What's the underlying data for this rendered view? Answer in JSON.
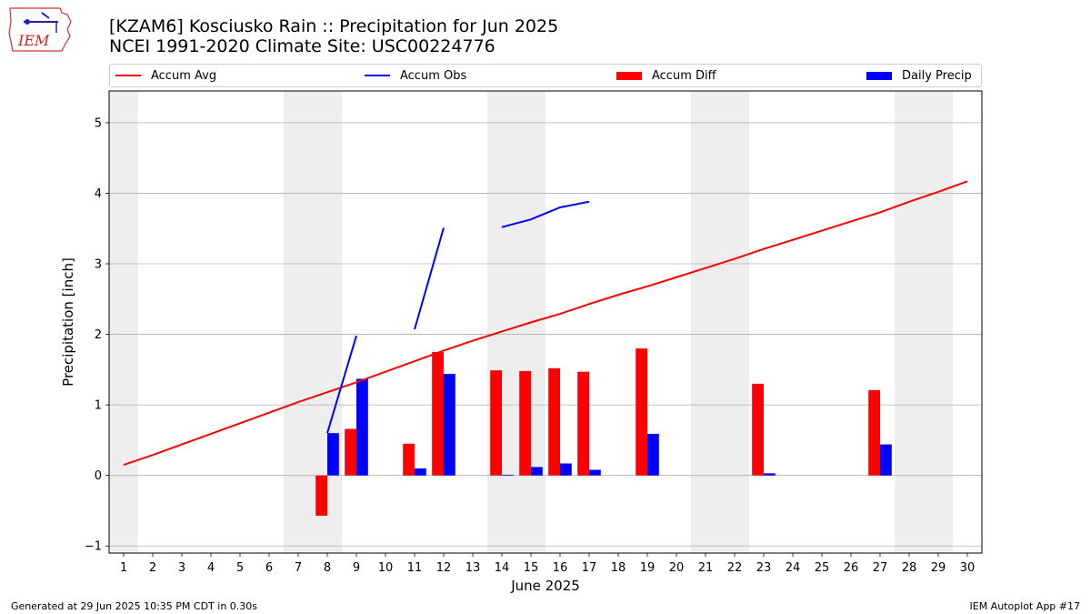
{
  "header": {
    "title_line1": "[KZAM6] Kosciusko Rain :: Precipitation for Jun 2025",
    "title_line2": "NCEI 1991-2020 Climate Site: USC00224776"
  },
  "logo": {
    "text": "IEM"
  },
  "footer": {
    "left": "Generated at 29 Jun 2025 10:35 PM CDT in 0.30s",
    "right": "IEM Autoplot App #17"
  },
  "colors": {
    "accum_avg": "#ff0000",
    "accum_obs": "#0000ff",
    "accum_diff": "#ff0000",
    "daily_precip": "#0000ff",
    "weekend_shade": "#eeeeee",
    "grid": "#b0b0b0"
  },
  "chart_data": {
    "type": "bar",
    "xlabel": "June 2025",
    "ylabel": "Precipitation [inch]",
    "ylim": [
      -1.1,
      5.45
    ],
    "xlim": [
      0.5,
      30.5
    ],
    "yticks": [
      -1,
      0,
      1,
      2,
      3,
      4,
      5
    ],
    "grid": true,
    "legend_placement": "top",
    "x": [
      1,
      2,
      3,
      4,
      5,
      6,
      7,
      8,
      9,
      10,
      11,
      12,
      13,
      14,
      15,
      16,
      17,
      18,
      19,
      20,
      21,
      22,
      23,
      24,
      25,
      26,
      27,
      28,
      29,
      30
    ],
    "weekend_days": [
      1,
      7,
      8,
      14,
      15,
      21,
      22,
      28,
      29
    ],
    "series": [
      {
        "name": "Accum Avg",
        "kind": "line",
        "values": [
          0.15,
          0.29,
          0.44,
          0.59,
          0.74,
          0.89,
          1.04,
          1.18,
          1.32,
          1.47,
          1.62,
          1.77,
          1.91,
          2.04,
          2.17,
          2.29,
          2.43,
          2.56,
          2.68,
          2.81,
          2.94,
          3.07,
          3.21,
          3.34,
          3.47,
          3.6,
          3.73,
          3.88,
          4.02,
          4.17
        ]
      },
      {
        "name": "Accum Obs",
        "kind": "line",
        "values": [
          null,
          null,
          null,
          null,
          null,
          null,
          null,
          0.6,
          1.98,
          null,
          2.07,
          3.51,
          null,
          3.52,
          3.63,
          3.8,
          3.88,
          null,
          null,
          null,
          null,
          null,
          null,
          null,
          null,
          null,
          null,
          null,
          null,
          null
        ]
      },
      {
        "name": "Accum Diff",
        "kind": "bar",
        "values": [
          0,
          0,
          0,
          0,
          0,
          0,
          0,
          -0.57,
          0.66,
          0,
          0.45,
          1.75,
          0,
          1.49,
          1.48,
          1.52,
          1.47,
          0,
          1.8,
          0,
          0,
          0,
          1.3,
          0,
          0,
          0,
          1.21,
          0,
          0,
          0
        ]
      },
      {
        "name": "Daily Precip",
        "kind": "bar",
        "values": [
          0,
          0,
          0,
          0,
          0,
          0,
          0,
          0.6,
          1.37,
          0,
          0.1,
          1.44,
          0,
          0.01,
          0.12,
          0.17,
          0.08,
          0,
          0.59,
          0,
          0,
          0,
          0.03,
          0,
          0,
          0,
          0.44,
          0,
          0,
          0
        ]
      }
    ]
  }
}
